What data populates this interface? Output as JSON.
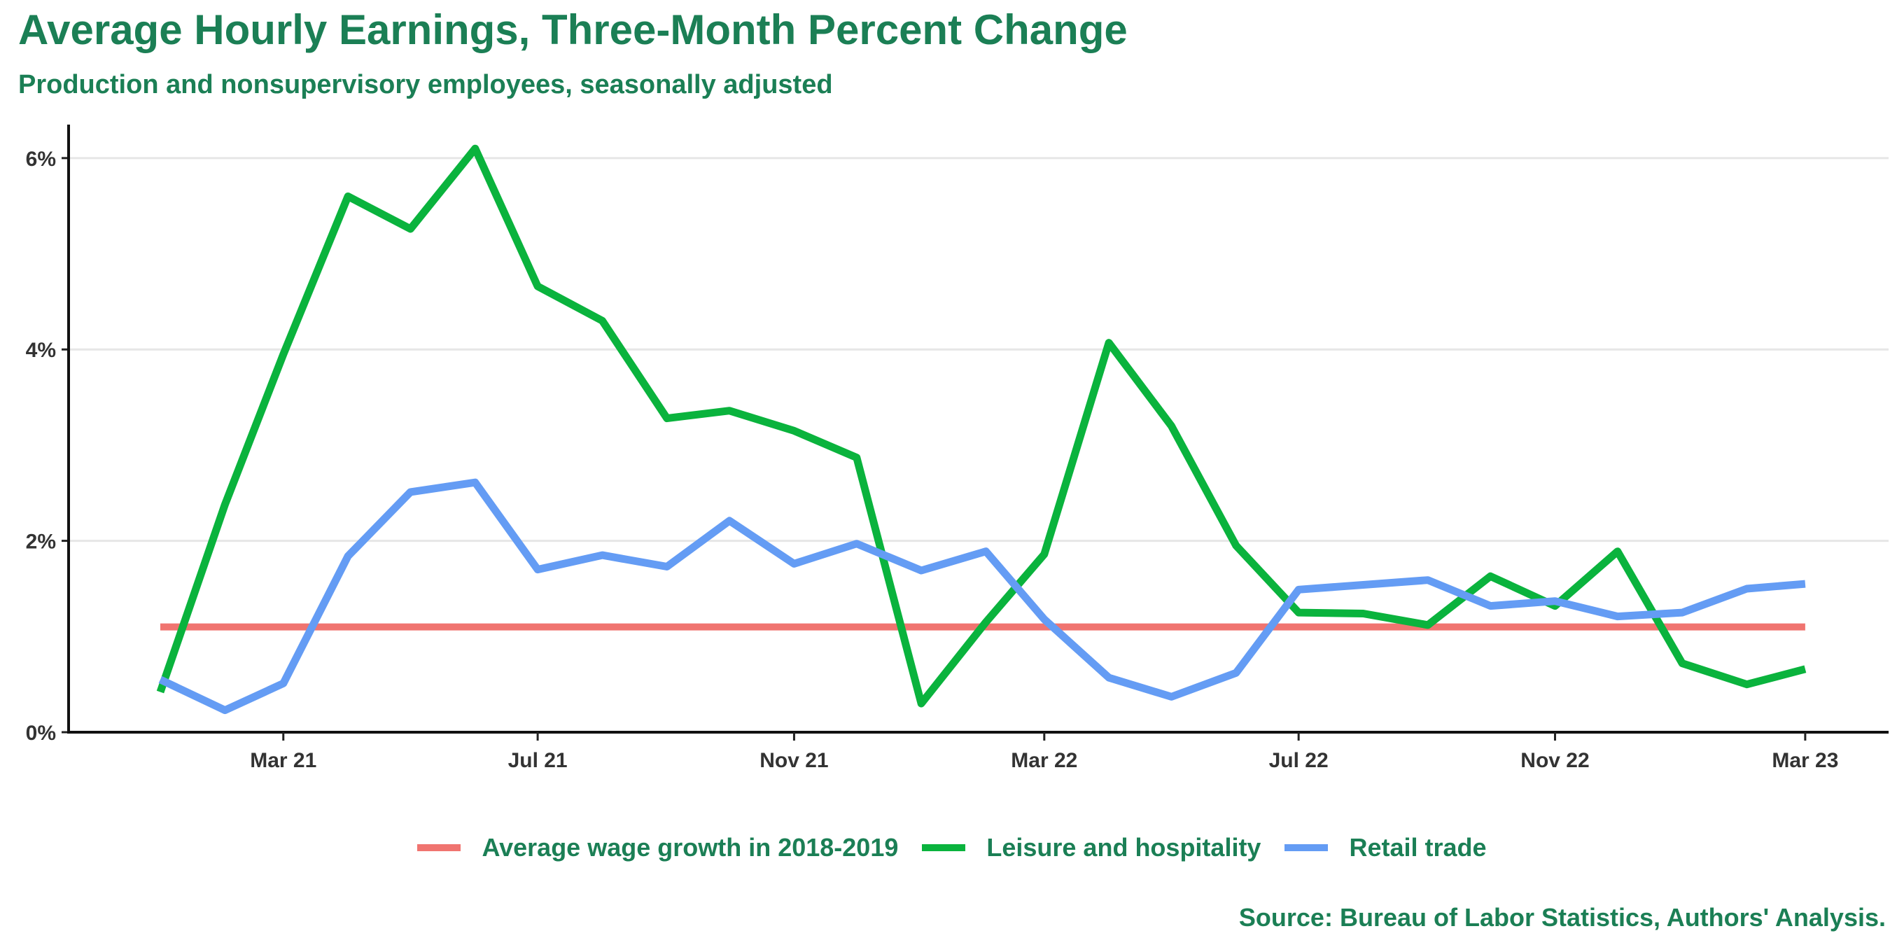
{
  "title": "Average Hourly Earnings, Three-Month Percent Change",
  "subtitle": "Production and nonsupervisory employees, seasonally adjusted",
  "source": "Source: Bureau of Labor Statistics, Authors' Analysis.",
  "chart_data": {
    "type": "line",
    "x": [
      "2021-01",
      "2021-02",
      "2021-03",
      "2021-04",
      "2021-05",
      "2021-06",
      "2021-07",
      "2021-08",
      "2021-09",
      "2021-10",
      "2021-11",
      "2021-12",
      "2022-01",
      "2022-02",
      "2022-03",
      "2022-04",
      "2022-05",
      "2022-06",
      "2022-07",
      "2022-08",
      "2022-09",
      "2022-10",
      "2022-11",
      "2022-12",
      "2023-01",
      "2023-02",
      "2023-03"
    ],
    "x_ticks": [
      {
        "x": "2021-03",
        "label": "Mar 21"
      },
      {
        "x": "2021-07",
        "label": "Jul 21"
      },
      {
        "x": "2021-11",
        "label": "Nov 21"
      },
      {
        "x": "2022-03",
        "label": "Mar 22"
      },
      {
        "x": "2022-07",
        "label": "Jul 22"
      },
      {
        "x": "2022-11",
        "label": "Nov 22"
      },
      {
        "x": "2023-03",
        "label": "Mar 23"
      }
    ],
    "y_ticks": [
      {
        "value": 0,
        "label": "0%"
      },
      {
        "value": 2,
        "label": "2%"
      },
      {
        "value": 4,
        "label": "4%"
      },
      {
        "value": 6,
        "label": "6%"
      }
    ],
    "ylim": [
      0,
      6.35
    ],
    "xlim": [
      "2020-11-18",
      "2023-04-10"
    ],
    "grid": "horizontal",
    "legend_position": "bottom",
    "series": [
      {
        "name": "Average wage growth in 2018-2019",
        "color": "#f07470",
        "values": [
          1.1,
          1.1,
          1.1,
          1.1,
          1.1,
          1.1,
          1.1,
          1.1,
          1.1,
          1.1,
          1.1,
          1.1,
          1.1,
          1.1,
          1.1,
          1.1,
          1.1,
          1.1,
          1.1,
          1.1,
          1.1,
          1.1,
          1.1,
          1.1,
          1.1,
          1.1,
          1.1
        ]
      },
      {
        "name": "Leisure and hospitality",
        "color": "#0ab33d",
        "values": [
          0.42,
          2.38,
          3.95,
          5.6,
          5.26,
          6.1,
          4.66,
          4.3,
          3.28,
          3.36,
          3.15,
          2.87,
          0.3,
          1.15,
          1.86,
          4.07,
          3.2,
          1.95,
          1.25,
          1.24,
          1.12,
          1.63,
          1.32,
          1.89,
          0.72,
          0.5,
          0.66
        ]
      },
      {
        "name": "Retail trade",
        "color": "#649cf4",
        "values": [
          0.55,
          0.23,
          0.51,
          1.84,
          2.51,
          2.61,
          1.7,
          1.85,
          1.73,
          2.21,
          1.76,
          1.97,
          1.69,
          1.89,
          1.18,
          0.57,
          0.37,
          0.62,
          1.49,
          1.54,
          1.59,
          1.32,
          1.37,
          1.21,
          1.25,
          1.5,
          1.55
        ]
      }
    ]
  }
}
